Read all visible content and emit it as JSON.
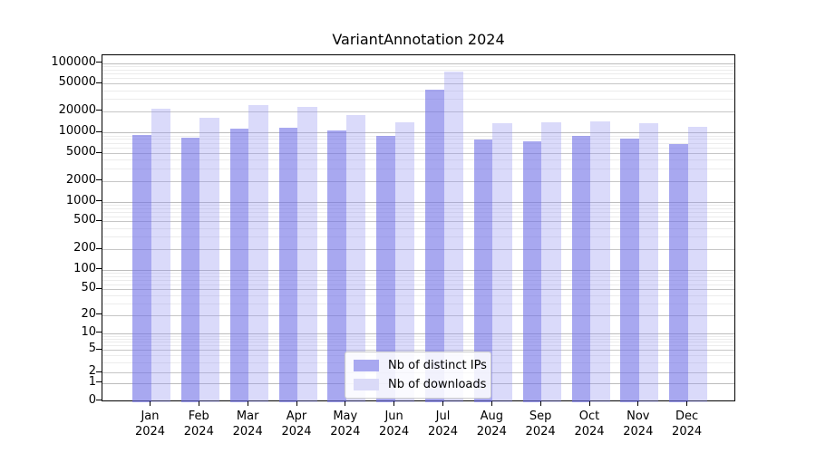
{
  "chart_data": {
    "type": "bar",
    "title": "VariantAnnotation 2024",
    "categories": [
      "Jan",
      "Feb",
      "Mar",
      "Apr",
      "May",
      "Jun",
      "Jul",
      "Aug",
      "Sep",
      "Oct",
      "Nov",
      "Dec"
    ],
    "x_tick_year": "2024",
    "series": [
      {
        "name": "Nb of distinct IPs",
        "fill": "rgba(110,110,230,0.6)",
        "swatch_color": "#a8a8f0",
        "values": [
          9200,
          8300,
          11300,
          11600,
          10500,
          8800,
          41000,
          7900,
          7400,
          8900,
          8200,
          6800
        ]
      },
      {
        "name": "Nb of downloads",
        "fill": "rgba(150,150,240,0.35)",
        "swatch_color": "#dadaf8",
        "values": [
          22000,
          16300,
          24800,
          23200,
          17700,
          13900,
          76000,
          13400,
          14100,
          14500,
          13500,
          11900
        ]
      }
    ],
    "y_tick_labels": [
      "0",
      "1",
      "2",
      "5",
      "10",
      "20",
      "50",
      "100",
      "200",
      "500",
      "1000",
      "2000",
      "5000",
      "10000",
      "20000",
      "50000",
      "100000"
    ],
    "yscale": "log-like (1-2-5 progression with 0 baseline)",
    "ylim": [
      0,
      130000
    ],
    "grid": true,
    "legend_position": "inside-bottom-center"
  }
}
